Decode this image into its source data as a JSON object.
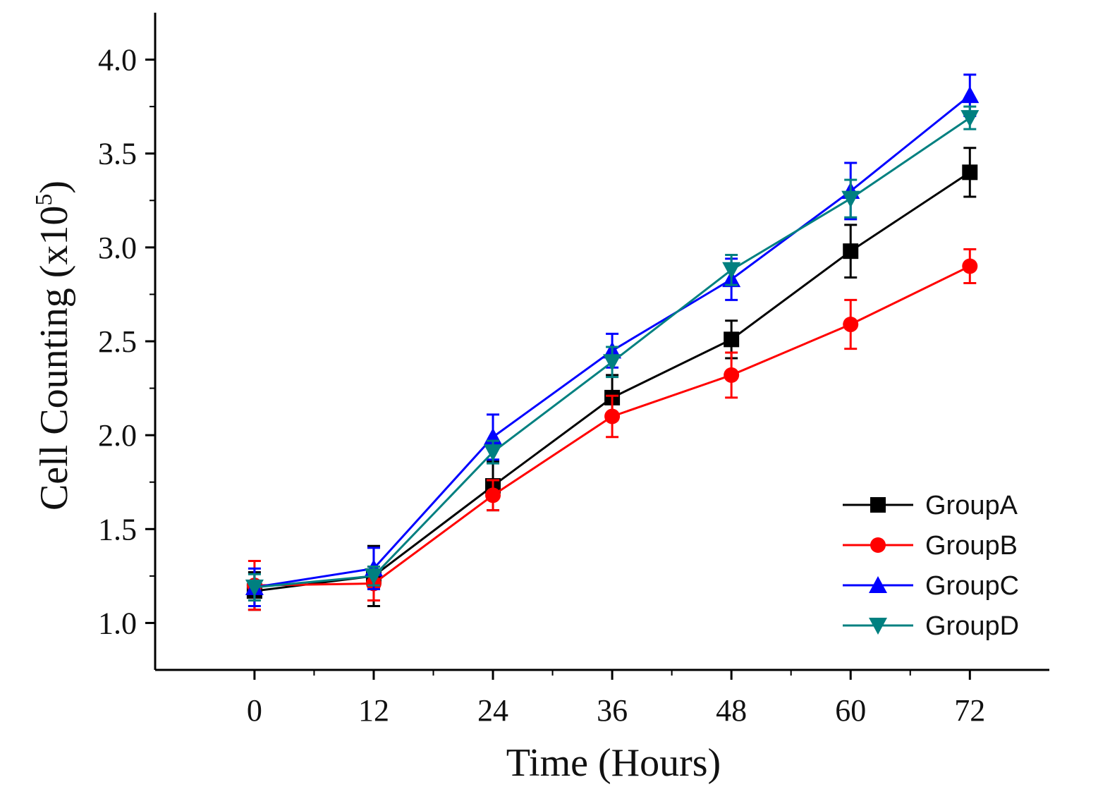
{
  "chart_data": {
    "type": "line",
    "title": "",
    "xlabel": "Time (Hours)",
    "ylabel_main": "Cell Counting (x10",
    "ylabel_sup": "5",
    "ylabel_close": ")",
    "x": [
      0,
      12,
      24,
      36,
      48,
      60,
      72
    ],
    "x_tick_labels": [
      "0",
      "12",
      "24",
      "36",
      "48",
      "60",
      "72"
    ],
    "xlim": [
      -10,
      80
    ],
    "ylim": [
      0.75,
      4.25
    ],
    "y_ticks": [
      1.0,
      1.5,
      2.0,
      2.5,
      3.0,
      3.5,
      4.0
    ],
    "y_tick_labels": [
      "1.0",
      "1.5",
      "2.0",
      "2.5",
      "3.0",
      "3.5",
      "4.0"
    ],
    "grid": false,
    "legend_position": "bottom-right",
    "series": [
      {
        "name": "GroupA",
        "color": "#000000",
        "marker": "square",
        "values": [
          1.17,
          1.25,
          1.73,
          2.2,
          2.51,
          2.98,
          3.4
        ],
        "errors": [
          0.1,
          0.16,
          0.13,
          0.12,
          0.1,
          0.14,
          0.13
        ]
      },
      {
        "name": "GroupB",
        "color": "#ff0000",
        "marker": "circle",
        "values": [
          1.2,
          1.21,
          1.68,
          2.1,
          2.32,
          2.59,
          2.9
        ],
        "errors": [
          0.13,
          0.09,
          0.08,
          0.11,
          0.12,
          0.13,
          0.09
        ]
      },
      {
        "name": "GroupC",
        "color": "#0000ff",
        "marker": "triangle-up",
        "values": [
          1.19,
          1.29,
          1.99,
          2.45,
          2.83,
          3.3,
          3.81
        ],
        "errors": [
          0.1,
          0.11,
          0.12,
          0.09,
          0.11,
          0.15,
          0.11
        ]
      },
      {
        "name": "GroupD",
        "color": "#008080",
        "marker": "triangle-down",
        "values": [
          1.19,
          1.25,
          1.91,
          2.39,
          2.88,
          3.26,
          3.69
        ],
        "errors": [
          0.07,
          0.05,
          0.06,
          0.08,
          0.08,
          0.1,
          0.06
        ]
      }
    ]
  }
}
